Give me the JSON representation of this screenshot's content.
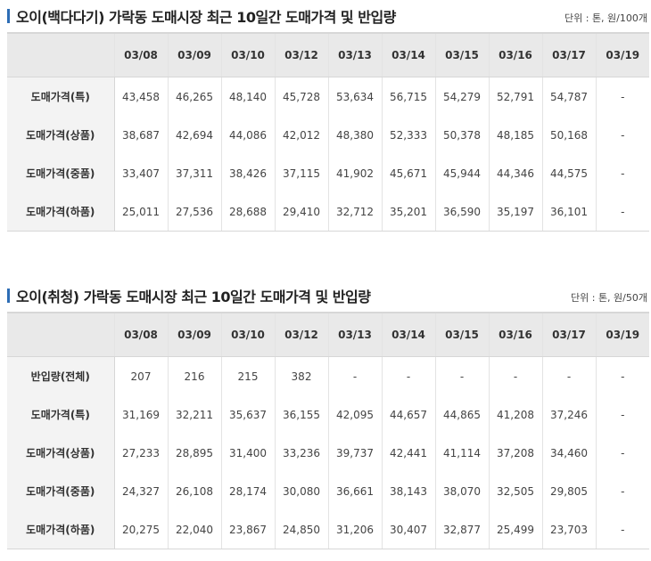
{
  "section1": {
    "title": "오이(백다다기) 가락동 도매시장 최근 10일간 도매가격 및 반입량",
    "unit": "단위 : 톤, 원/100개",
    "dates": [
      "03/08",
      "03/09",
      "03/10",
      "03/12",
      "03/13",
      "03/14",
      "03/15",
      "03/16",
      "03/17",
      "03/19"
    ],
    "rows": [
      {
        "label": "도매가격(특)",
        "values": [
          "43,458",
          "46,265",
          "48,140",
          "45,728",
          "53,634",
          "56,715",
          "54,279",
          "52,791",
          "54,787",
          "-"
        ]
      },
      {
        "label": "도매가격(상품)",
        "values": [
          "38,687",
          "42,694",
          "44,086",
          "42,012",
          "48,380",
          "52,333",
          "50,378",
          "48,185",
          "50,168",
          "-"
        ]
      },
      {
        "label": "도매가격(중품)",
        "values": [
          "33,407",
          "37,311",
          "38,426",
          "37,115",
          "41,902",
          "45,671",
          "45,944",
          "44,346",
          "44,575",
          "-"
        ]
      },
      {
        "label": "도매가격(하품)",
        "values": [
          "25,011",
          "27,536",
          "28,688",
          "29,410",
          "32,712",
          "35,201",
          "36,590",
          "35,197",
          "36,101",
          "-"
        ]
      }
    ]
  },
  "section2": {
    "title": "오이(취청) 가락동 도매시장 최근 10일간 도매가격 및 반입량",
    "unit": "단위 : 톤, 원/50개",
    "dates": [
      "03/08",
      "03/09",
      "03/10",
      "03/12",
      "03/13",
      "03/14",
      "03/15",
      "03/16",
      "03/17",
      "03/19"
    ],
    "rows": [
      {
        "label": "반입량(전체)",
        "values": [
          "207",
          "216",
          "215",
          "382",
          "-",
          "-",
          "-",
          "-",
          "-",
          "-"
        ]
      },
      {
        "label": "도매가격(특)",
        "values": [
          "31,169",
          "32,211",
          "35,637",
          "36,155",
          "42,095",
          "44,657",
          "44,865",
          "41,208",
          "37,246",
          "-"
        ]
      },
      {
        "label": "도매가격(상품)",
        "values": [
          "27,233",
          "28,895",
          "31,400",
          "33,236",
          "39,737",
          "42,441",
          "41,114",
          "37,208",
          "34,460",
          "-"
        ]
      },
      {
        "label": "도매가격(중품)",
        "values": [
          "24,327",
          "26,108",
          "28,174",
          "30,080",
          "36,661",
          "38,143",
          "38,070",
          "32,505",
          "29,805",
          "-"
        ]
      },
      {
        "label": "도매가격(하품)",
        "values": [
          "20,275",
          "22,040",
          "23,867",
          "24,850",
          "31,206",
          "30,407",
          "32,877",
          "25,499",
          "23,703",
          "-"
        ]
      }
    ]
  }
}
